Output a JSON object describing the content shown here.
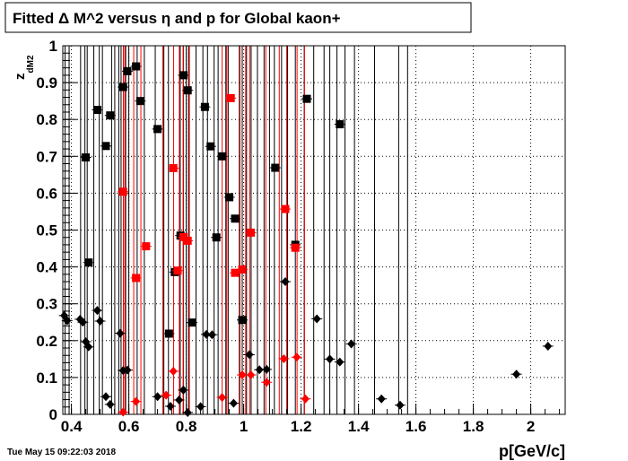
{
  "chart_data": {
    "type": "scatter",
    "title": "Fitted Δ M^2 versus η and p for Global kaon+",
    "xlabel": "p[GeV/c]",
    "ylabel": "z_dM2",
    "ylabel_main": "z",
    "ylabel_sub": "dM2",
    "xlim": [
      0.37,
      2.12
    ],
    "ylim": [
      0,
      1
    ],
    "x_ticks": [
      0.4,
      0.6,
      0.8,
      1,
      1.2,
      1.4,
      1.6,
      1.8,
      2
    ],
    "x_tick_labels": [
      "0.4",
      "0.6",
      "0.8",
      "1",
      "1.2",
      "1.4",
      "1.6",
      "1.8",
      "2"
    ],
    "y_ticks": [
      0,
      0.1,
      0.2,
      0.3,
      0.4,
      0.5,
      0.6,
      0.7,
      0.8,
      0.9,
      1
    ],
    "y_tick_labels": [
      "0",
      "0.1",
      "0.2",
      "0.3",
      "0.4",
      "0.5",
      "0.6",
      "0.7",
      "0.8",
      "0.9",
      "1"
    ],
    "grid": true,
    "timestamp": "Tue May 15 09:22:03 2018",
    "colors": {
      "black": "#000000",
      "red": "#ff0000"
    },
    "series": [
      {
        "marker": "square",
        "color": "#000000",
        "points": [
          [
            0.45,
            0.697
          ],
          [
            0.46,
            0.412
          ],
          [
            0.49,
            0.826
          ],
          [
            0.52,
            0.728
          ],
          [
            0.535,
            0.811
          ],
          [
            0.58,
            0.888
          ],
          [
            0.595,
            0.931
          ],
          [
            0.625,
            0.944
          ],
          [
            0.64,
            0.85
          ],
          [
            0.7,
            0.774
          ],
          [
            0.74,
            0.219
          ],
          [
            0.76,
            0.386
          ],
          [
            0.78,
            0.485
          ],
          [
            0.79,
            0.92
          ],
          [
            0.805,
            0.879
          ],
          [
            0.82,
            0.249
          ],
          [
            0.865,
            0.834
          ],
          [
            0.885,
            0.727
          ],
          [
            0.905,
            0.48
          ],
          [
            0.925,
            0.7
          ],
          [
            0.95,
            0.589
          ],
          [
            0.97,
            0.531
          ],
          [
            0.995,
            0.256
          ],
          [
            1.11,
            0.669
          ],
          [
            1.18,
            0.46
          ],
          [
            1.22,
            0.856
          ],
          [
            1.335,
            0.787
          ]
        ]
      },
      {
        "marker": "square",
        "color": "#ff0000",
        "points": [
          [
            0.58,
            0.604
          ],
          [
            0.625,
            0.37
          ],
          [
            0.66,
            0.456
          ],
          [
            0.755,
            0.668
          ],
          [
            0.77,
            0.39
          ],
          [
            0.79,
            0.481
          ],
          [
            0.805,
            0.471
          ],
          [
            0.955,
            0.858
          ],
          [
            0.97,
            0.384
          ],
          [
            0.995,
            0.393
          ],
          [
            1.025,
            0.493
          ],
          [
            1.145,
            0.557
          ],
          [
            1.18,
            0.452
          ]
        ]
      },
      {
        "marker": "diamond",
        "color": "#000000",
        "points": [
          [
            0.375,
            0.268
          ],
          [
            0.385,
            0.254
          ],
          [
            0.43,
            0.258
          ],
          [
            0.44,
            0.25
          ],
          [
            0.45,
            0.197
          ],
          [
            0.46,
            0.183
          ],
          [
            0.49,
            0.282
          ],
          [
            0.5,
            0.253
          ],
          [
            0.52,
            0.048
          ],
          [
            0.535,
            0.027
          ],
          [
            0.57,
            0.22
          ],
          [
            0.58,
            0.119
          ],
          [
            0.595,
            0.12
          ],
          [
            0.7,
            0.048
          ],
          [
            0.745,
            0.022
          ],
          [
            0.775,
            0.039
          ],
          [
            0.79,
            0.066
          ],
          [
            0.805,
            0.005
          ],
          [
            0.85,
            0.021
          ],
          [
            0.87,
            0.217
          ],
          [
            0.89,
            0.216
          ],
          [
            0.965,
            0.03
          ],
          [
            1.02,
            0.162
          ],
          [
            1.055,
            0.121
          ],
          [
            1.08,
            0.122
          ],
          [
            1.145,
            0.36
          ],
          [
            1.255,
            0.259
          ],
          [
            1.3,
            0.15
          ],
          [
            1.335,
            0.142
          ],
          [
            1.375,
            0.191
          ],
          [
            1.48,
            0.042
          ],
          [
            1.545,
            0.025
          ],
          [
            1.95,
            0.109
          ],
          [
            2.06,
            0.185
          ]
        ]
      },
      {
        "marker": "diamond",
        "color": "#ff0000",
        "points": [
          [
            0.58,
            0.006
          ],
          [
            0.625,
            0.035
          ],
          [
            0.73,
            0.052
          ],
          [
            0.755,
            0.117
          ],
          [
            0.925,
            0.046
          ],
          [
            0.995,
            0.107
          ],
          [
            1.025,
            0.107
          ],
          [
            1.08,
            0.087
          ],
          [
            1.14,
            0.151
          ],
          [
            1.185,
            0.155
          ],
          [
            1.215,
            0.042
          ]
        ]
      }
    ],
    "vertical_lines": {
      "black": [
        0.378,
        0.392,
        0.432,
        0.447,
        0.455,
        0.478,
        0.497,
        0.508,
        0.54,
        0.551,
        0.565,
        0.573,
        0.589,
        0.6,
        0.629,
        0.654,
        0.692,
        0.722,
        0.738,
        0.779,
        0.79,
        0.8,
        0.808,
        0.834,
        0.858,
        0.874,
        0.897,
        0.911,
        0.938,
        0.946,
        0.985,
        0.995,
        1.01,
        1.026,
        1.048,
        1.071,
        1.09,
        1.107,
        1.132,
        1.153,
        1.18,
        1.211,
        1.244,
        1.28,
        1.3,
        1.325,
        1.353,
        1.386,
        1.456,
        1.54,
        1.571
      ],
      "red": [
        0.581,
        0.586,
        0.617,
        0.642,
        0.718,
        0.756,
        0.776,
        0.789,
        0.811,
        0.925,
        0.941,
        0.987,
        1.007,
        1.021,
        1.077,
        1.124,
        1.15,
        1.186,
        1.212
      ]
    }
  }
}
